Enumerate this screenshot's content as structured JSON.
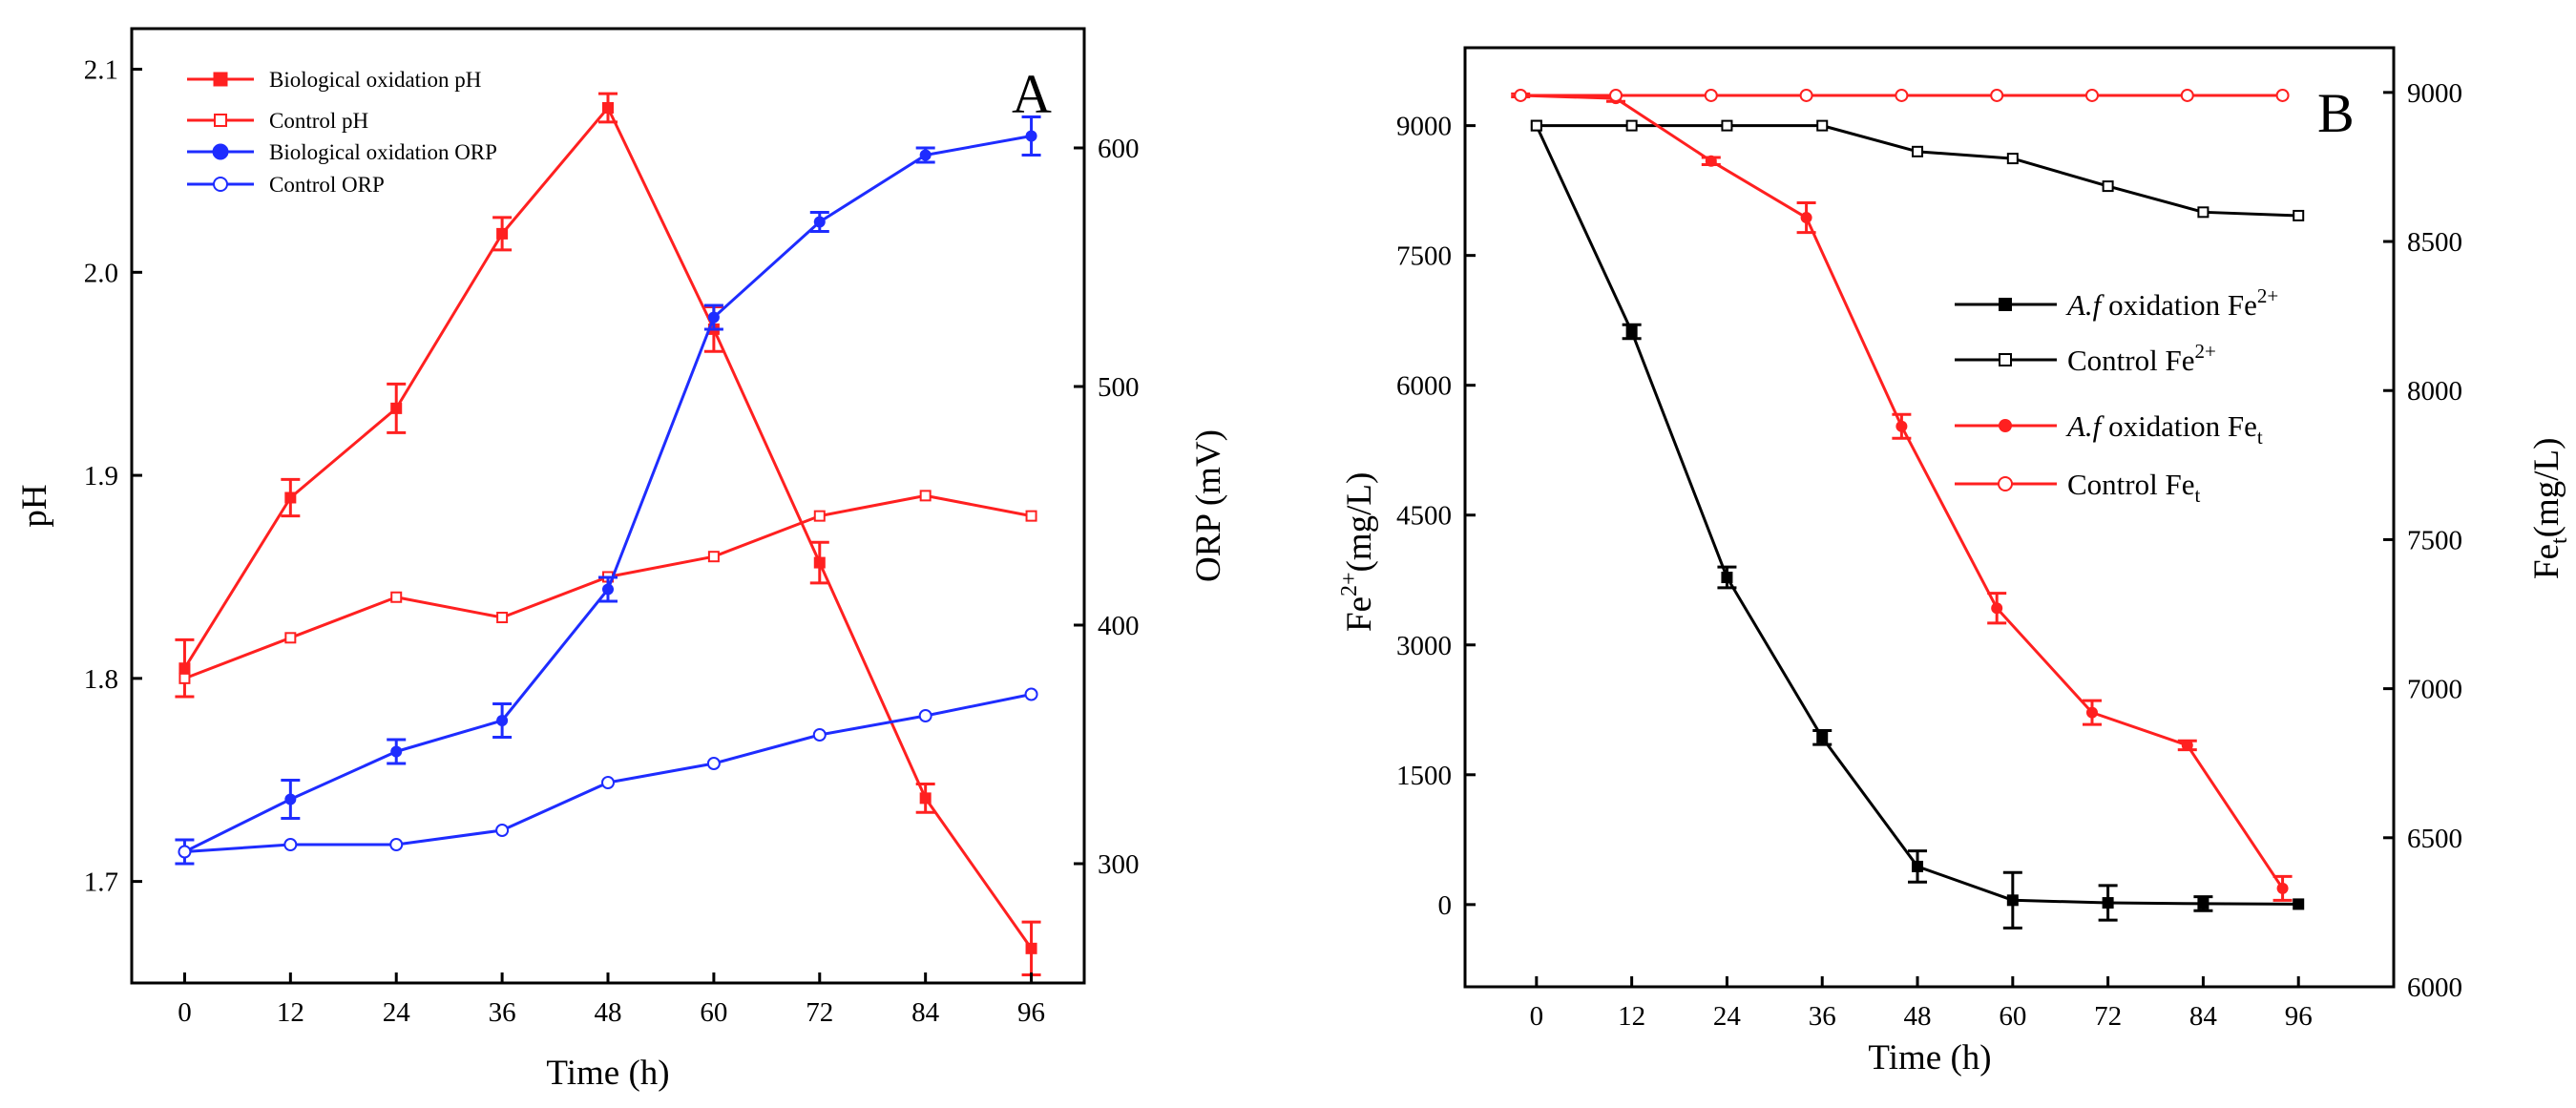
{
  "chart_data": [
    {
      "type": "line",
      "panel_label": "A",
      "xlabel": "Time (h)",
      "ylabel_left": "pH",
      "ylabel_right": "ORP (mV)",
      "x_ticks": [
        "0",
        "12",
        "24",
        "36",
        "48",
        "60",
        "72",
        "84",
        "96"
      ],
      "x_values": [
        0,
        12,
        24,
        36,
        48,
        60,
        72,
        84,
        96
      ],
      "xlim": [
        -6,
        102
      ],
      "ylim_left": [
        1.65,
        2.12
      ],
      "ylim_right": [
        250,
        650
      ],
      "left_ticks": [
        "1.7",
        "1.8",
        "1.9",
        "2.0",
        "2.1"
      ],
      "right_ticks": [
        "300",
        "400",
        "500",
        "600"
      ],
      "legend_position": "top-left",
      "series": [
        {
          "name": "Biological oxidation pH",
          "axis": "left",
          "color": "#ff2020",
          "marker": "square-filled",
          "values": [
            1.805,
            1.889,
            1.933,
            2.019,
            2.081,
            1.972,
            1.857,
            1.741,
            1.667
          ],
          "errors": [
            0.014,
            0.009,
            0.012,
            0.008,
            0.007,
            0.011,
            0.01,
            0.007,
            0.013
          ]
        },
        {
          "name": "Control pH",
          "axis": "left",
          "color": "#ff2020",
          "marker": "square-open",
          "values": [
            1.8,
            1.82,
            1.84,
            1.83,
            1.85,
            1.86,
            1.88,
            1.89,
            1.88
          ],
          "errors": []
        },
        {
          "name": "Biological oxidation ORP",
          "axis": "right",
          "color": "#1e2cff",
          "marker": "circle-filled",
          "values": [
            305,
            327,
            347,
            360,
            415,
            529,
            569,
            597,
            605
          ],
          "errors": [
            5,
            8,
            5,
            7,
            5,
            5,
            4,
            3,
            8
          ]
        },
        {
          "name": "Control ORP",
          "axis": "right",
          "color": "#1e2cff",
          "marker": "circle-open",
          "values": [
            305,
            308,
            308,
            314,
            334,
            342,
            354,
            362,
            371
          ],
          "errors": []
        }
      ]
    },
    {
      "type": "line",
      "panel_label": "B",
      "xlabel": "Time (h)",
      "ylabel_left": "Fe2+(mg/L)",
      "ylabel_right": "Fet(mg/L)",
      "x_ticks": [
        "0",
        "12",
        "24",
        "36",
        "48",
        "60",
        "72",
        "84",
        "96"
      ],
      "x_values": [
        0,
        12,
        24,
        36,
        48,
        60,
        72,
        84,
        96
      ],
      "xlim": [
        -9,
        108
      ],
      "ylim_left": [
        -950,
        9900
      ],
      "ylim_right": [
        6000,
        9150
      ],
      "left_ticks": [
        "0",
        "1500",
        "3000",
        "4500",
        "6000",
        "7500",
        "9000"
      ],
      "right_ticks": [
        "6000",
        "6500",
        "7000",
        "7500",
        "8000",
        "8500",
        "9000"
      ],
      "legend_position": "center-right",
      "series": [
        {
          "name": "A.f oxidation Fe2+",
          "name_italic": "A.f",
          "name_rest": " oxidation Fe",
          "name_sup": "2+",
          "name_sub": "",
          "axis": "left",
          "color": "#000000",
          "marker": "square-filled",
          "x": [
            0,
            12,
            24,
            36,
            48,
            60,
            72,
            84,
            96
          ],
          "values": [
            9000,
            6620,
            3780,
            1930,
            440,
            50,
            20,
            10,
            5
          ],
          "errors": [
            0,
            80,
            120,
            80,
            180,
            320,
            200,
            80,
            0
          ]
        },
        {
          "name": "Control Fe2+",
          "name_italic": "",
          "name_rest": "Control Fe",
          "name_sup": "2+",
          "name_sub": "",
          "axis": "left",
          "color": "#000000",
          "marker": "square-open",
          "x": [
            0,
            12,
            24,
            36,
            48,
            60,
            72,
            84,
            96
          ],
          "values": [
            9000,
            9000,
            9000,
            9000,
            8700,
            8620,
            8300,
            8000,
            7960
          ],
          "errors": []
        },
        {
          "name": "A.f oxidation Fet",
          "name_italic": "A.f",
          "name_rest": " oxidation Fe",
          "name_sup": "",
          "name_sub": "t",
          "axis": "right",
          "color": "#ff2020",
          "marker": "circle-filled",
          "x": [
            -2,
            10,
            22,
            34,
            46,
            58,
            70,
            82,
            94
          ],
          "values": [
            8990,
            8980,
            8770,
            8580,
            7880,
            7270,
            6920,
            6810,
            6330
          ],
          "errors": [
            5,
            10,
            12,
            50,
            40,
            50,
            40,
            15,
            40
          ]
        },
        {
          "name": "Control Fet",
          "name_italic": "",
          "name_rest": "Control Fe",
          "name_sup": "",
          "name_sub": "t",
          "axis": "right",
          "color": "#ff2020",
          "marker": "circle-open",
          "x": [
            -2,
            10,
            22,
            34,
            46,
            58,
            70,
            82,
            94
          ],
          "values": [
            8990,
            8990,
            8990,
            8990,
            8990,
            8990,
            8990,
            8990,
            8990
          ],
          "errors": []
        }
      ]
    }
  ]
}
